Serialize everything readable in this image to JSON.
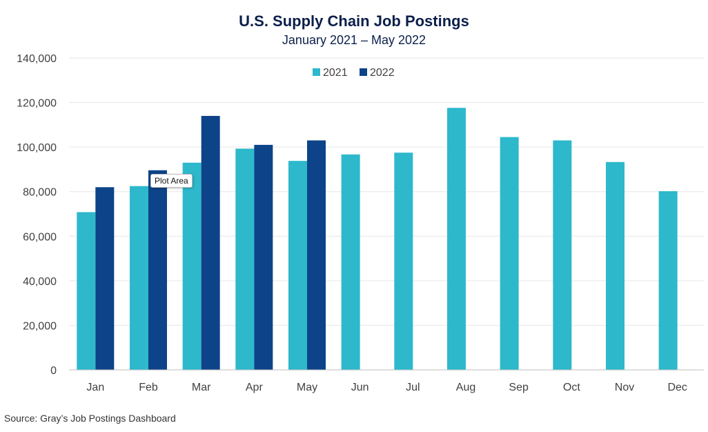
{
  "chart_data": {
    "type": "bar",
    "title": "U.S. Supply Chain Job Postings",
    "subtitle": "January 2021 – May 2022",
    "xlabel": "",
    "ylabel": "",
    "categories": [
      "Jan",
      "Feb",
      "Mar",
      "Apr",
      "May",
      "Jun",
      "Jul",
      "Aug",
      "Sep",
      "Oct",
      "Nov",
      "Dec"
    ],
    "series": [
      {
        "name": "2021",
        "color": "#2db8cc",
        "values": [
          70800,
          82500,
          93000,
          99300,
          93800,
          96700,
          97500,
          117600,
          104500,
          103000,
          93300,
          80200
        ]
      },
      {
        "name": "2022",
        "color": "#0d4388",
        "values": [
          82000,
          89600,
          114000,
          101000,
          103000,
          null,
          null,
          null,
          null,
          null,
          null,
          null
        ]
      }
    ],
    "ylim": [
      0,
      140000
    ],
    "yticks": [
      0,
      20000,
      40000,
      60000,
      80000,
      100000,
      120000,
      140000
    ],
    "ytick_labels": [
      "0",
      "20,000",
      "40,000",
      "60,000",
      "80,000",
      "100,000",
      "120,000",
      "140,000"
    ],
    "grid": true,
    "legend_position": "top-center"
  },
  "tooltip": {
    "text": "Plot Area"
  },
  "source": {
    "text": "Source:  Gray’s Job Postings Dashboard"
  }
}
